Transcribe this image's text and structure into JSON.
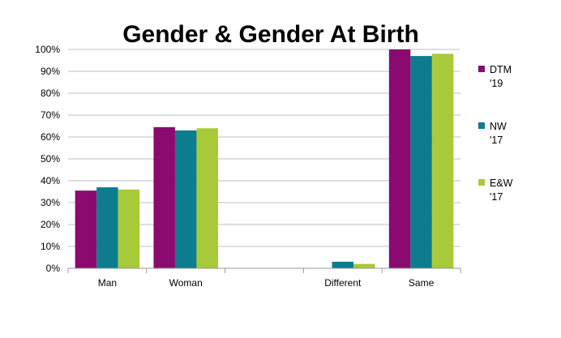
{
  "chart_data": {
    "type": "bar",
    "title": "Gender & Gender At Birth",
    "categories": [
      "Man",
      "Woman",
      "",
      "Different",
      "Same"
    ],
    "series": [
      {
        "name": "DTM '19",
        "legend_lines": [
          "DTM",
          "'19"
        ],
        "color": "#8B0A6F",
        "values": [
          35.5,
          64.5,
          0,
          0,
          100
        ]
      },
      {
        "name": "NW '17",
        "legend_lines": [
          "NW",
          "'17"
        ],
        "color": "#0E7B8E",
        "values": [
          37,
          63,
          0,
          3,
          97
        ]
      },
      {
        "name": "E&W '17",
        "legend_lines": [
          "E&W",
          "'17"
        ],
        "color": "#A8C93A",
        "values": [
          36,
          64,
          0,
          2,
          98
        ]
      }
    ],
    "ylim": [
      0,
      100
    ],
    "ytick_step": 10,
    "ytick_labels": [
      "0%",
      "10%",
      "20%",
      "30%",
      "40%",
      "50%",
      "60%",
      "70%",
      "80%",
      "90%",
      "100%"
    ],
    "grid": true,
    "legend_position": "right",
    "gridline_color": "#bfbfbf"
  }
}
